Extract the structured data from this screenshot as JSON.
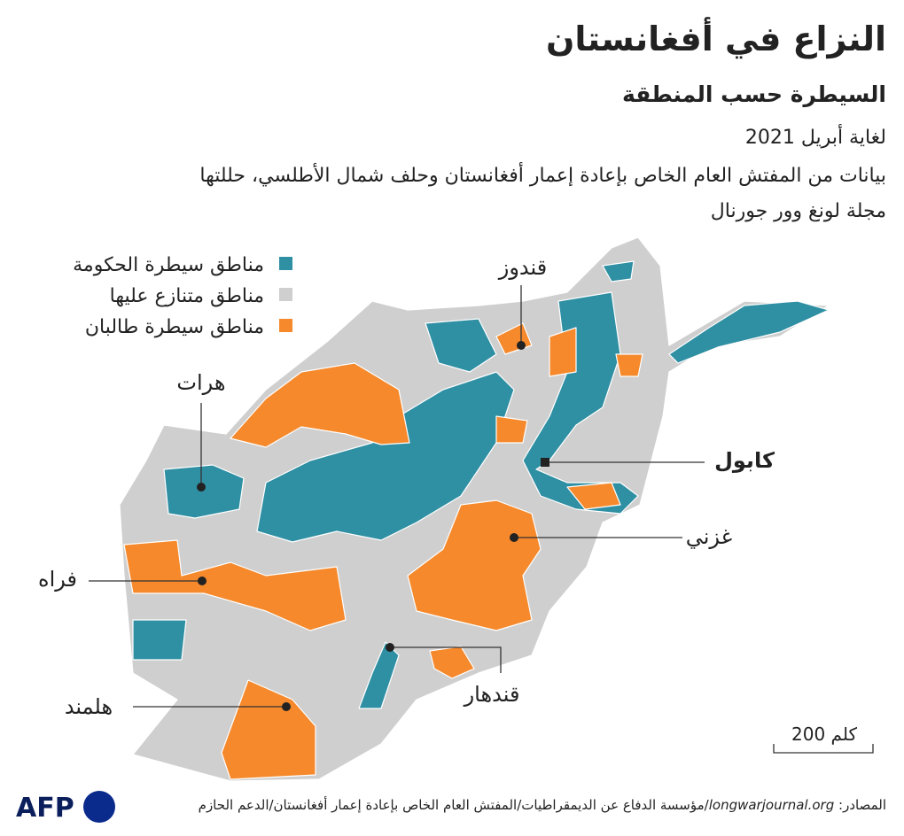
{
  "header": {
    "title": "النزاع في أفغانستان",
    "subtitle": "السيطرة حسب المنطقة",
    "date": "لغاية أبريل 2021",
    "description": [
      "بيانات من المفتش العام الخاص بإعادة إعمار أفغانستان وحلف شمال الأطلسي، حللتها",
      "مجلة لونغ وور جورنال"
    ]
  },
  "legend": [
    {
      "label": "مناطق سيطرة الحكومة",
      "color": "#2f8fa3"
    },
    {
      "label": "مناطق متنازع عليها",
      "color": "#cfcfcf"
    },
    {
      "label": "مناطق سيطرة طالبان",
      "color": "#f5892c"
    }
  ],
  "map": {
    "labels": [
      "قندوز",
      "هرات",
      "كابول",
      "غزني",
      "فراه",
      "هلمند",
      "قندهار"
    ]
  },
  "scale": {
    "label": "200 كلم"
  },
  "source": {
    "prefix": "المصادر:",
    "site": "longwarjournal.org",
    "rest": "/مؤسسة الدفاع عن الديمقراطيات/المفتش العام الخاص بإعادة إعمار أفغانستان/الدعم الحازم"
  },
  "logo": "AFP"
}
